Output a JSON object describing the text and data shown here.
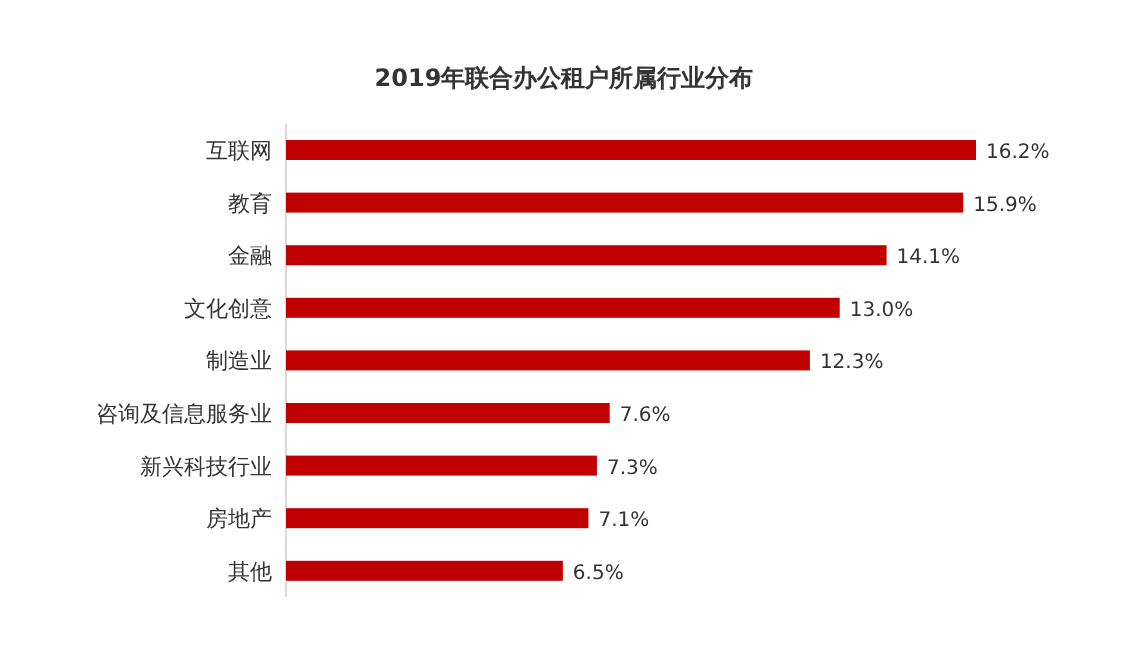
{
  "chart_data": {
    "type": "bar",
    "orientation": "horizontal",
    "title": "2019年联合办公租户所属行业分布",
    "categories": [
      "互联网",
      "教育",
      "金融",
      "文化创意",
      "制造业",
      "咨询及信息服务业",
      "新兴科技行业",
      "房地产",
      "其他"
    ],
    "values": [
      16.2,
      15.9,
      14.1,
      13.0,
      12.3,
      7.6,
      7.3,
      7.1,
      6.5
    ],
    "value_labels": [
      "16.2%",
      "15.9%",
      "14.1%",
      "13.0%",
      "12.3%",
      "7.6%",
      "7.3%",
      "7.1%",
      "6.5%"
    ],
    "color": "#c00000"
  }
}
